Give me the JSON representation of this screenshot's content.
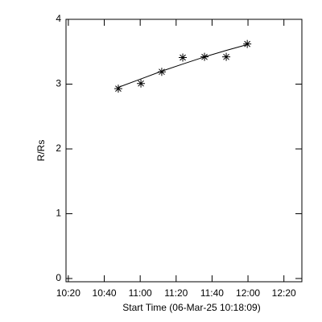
{
  "chart_data": {
    "type": "scatter",
    "x_label": "Start Time (06-Mar-25 10:18:09)",
    "y_label": "R/Rs",
    "x": [
      647.8,
      660.4,
      672,
      683.7,
      695.8,
      707.9,
      719.6
    ],
    "series": [
      {
        "values": [
          2.93,
          3.01,
          3.19,
          3.41,
          3.42,
          3.42,
          3.62
        ],
        "color": "#000000",
        "marker": "asterisk"
      },
      {
        "values": [
          2.95,
          3.08,
          3.2,
          3.31,
          3.42,
          3.52,
          3.61
        ],
        "color": "#000000",
        "marker": "line"
      }
    ],
    "xlim": [
      618.7,
      750
    ],
    "ylim": [
      -0.05,
      4
    ],
    "xticks": [
      {
        "value": 620,
        "label": "10:20"
      },
      {
        "value": 640,
        "label": "10:40"
      },
      {
        "value": 660,
        "label": "11:00"
      },
      {
        "value": 680,
        "label": "11:20"
      },
      {
        "value": 700,
        "label": "11:40"
      },
      {
        "value": 720,
        "label": "12:00"
      },
      {
        "value": 740,
        "label": "12:20"
      }
    ],
    "yticks": [
      0,
      1,
      2,
      3,
      4
    ],
    "grid": false
  }
}
